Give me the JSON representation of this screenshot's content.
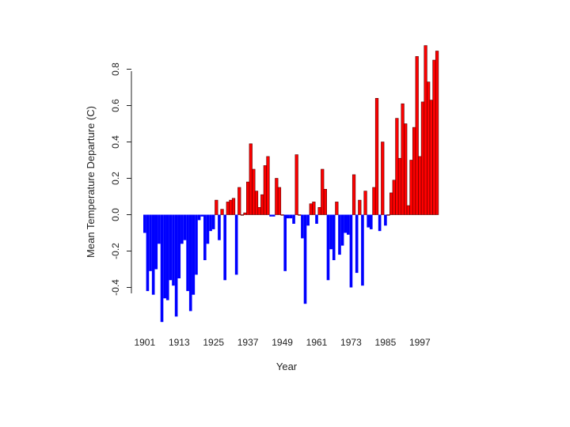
{
  "chart_data": {
    "type": "bar",
    "title": "",
    "xlabel": "Year",
    "ylabel": "Mean Temperature Departure (C)",
    "x_tick_labels": [
      "1901",
      "1913",
      "1925",
      "1937",
      "1949",
      "1961",
      "1973",
      "1985",
      "1997"
    ],
    "y_tick_labels": [
      "-0.4",
      "-0.2",
      "0.0",
      "0.2",
      "0.4",
      "0.6",
      "0.8"
    ],
    "y_ticks": [
      -0.4,
      -0.2,
      0.0,
      0.2,
      0.4,
      0.6,
      0.8
    ],
    "ylim": [
      -0.62,
      0.94
    ],
    "grid": false,
    "colors": {
      "positive": "#ff0000",
      "negative": "#0000ff",
      "outline": "#5a0000"
    },
    "x_start": 1901,
    "values": [
      -0.1,
      -0.42,
      -0.31,
      -0.44,
      -0.3,
      -0.16,
      -0.59,
      -0.46,
      -0.47,
      -0.36,
      -0.39,
      -0.56,
      -0.35,
      -0.16,
      -0.14,
      -0.42,
      -0.53,
      -0.44,
      -0.33,
      -0.03,
      -0.01,
      -0.25,
      -0.16,
      -0.09,
      -0.08,
      0.08,
      -0.14,
      0.03,
      -0.36,
      0.07,
      0.08,
      0.09,
      -0.33,
      0.15,
      0.0,
      0.01,
      0.18,
      0.39,
      0.25,
      0.13,
      0.04,
      0.11,
      0.27,
      0.32,
      -0.01,
      -0.01,
      0.2,
      0.15,
      0.0,
      -0.31,
      -0.02,
      -0.02,
      -0.05,
      0.33,
      0.0,
      -0.13,
      -0.49,
      -0.06,
      0.06,
      0.07,
      -0.05,
      0.04,
      0.25,
      0.14,
      -0.36,
      -0.19,
      -0.25,
      0.07,
      -0.22,
      -0.17,
      -0.1,
      -0.11,
      -0.4,
      0.22,
      -0.32,
      0.08,
      -0.39,
      0.13,
      -0.07,
      -0.08,
      0.15,
      0.64,
      -0.09,
      0.4,
      -0.06,
      0.0,
      0.12,
      0.19,
      0.53,
      0.31,
      0.61,
      0.5,
      0.05,
      0.3,
      0.48,
      0.87,
      0.32,
      0.62,
      0.93,
      0.73,
      0.63,
      0.85,
      0.9
    ]
  }
}
